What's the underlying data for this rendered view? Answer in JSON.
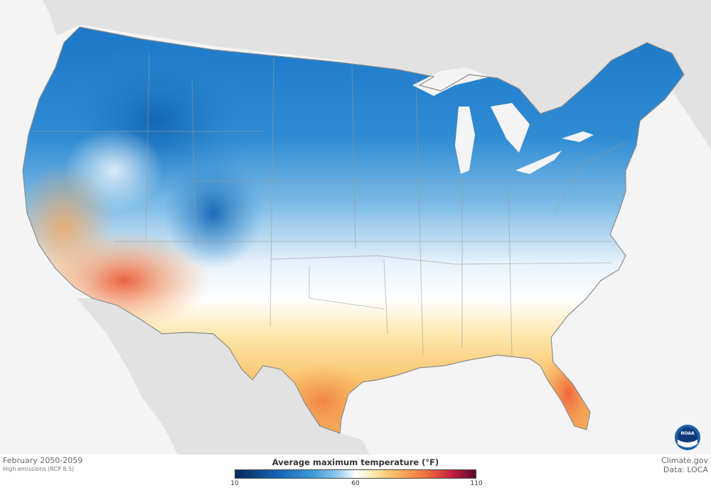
{
  "map": {
    "period_label": "February 2050-2059",
    "scenario_label": "High emissions (RCP 8.5)",
    "legend": {
      "title": "Average maximum temperature (°F)",
      "unit": "°F",
      "ticks": [
        {
          "value": 10,
          "label": "10"
        },
        {
          "value": 60,
          "label": "60"
        },
        {
          "value": 110,
          "label": "110"
        }
      ],
      "min": 10,
      "max": 110
    },
    "credit": "Climate.gov",
    "data_source": "Data: LOCA",
    "logo": {
      "text": "NOAA",
      "colors": {
        "outer": "#1c5fa8",
        "inner": "#ffffff",
        "band": "#0d3b7a"
      }
    },
    "colors": {
      "land_background": "#e2e2e2",
      "water": "#f4f4f4",
      "cold": "#1f7ac9",
      "cool": "#a8d2ef",
      "neutral": "#ffffff",
      "warm": "#fbc97a",
      "hot": "#ee6f3f"
    }
  }
}
